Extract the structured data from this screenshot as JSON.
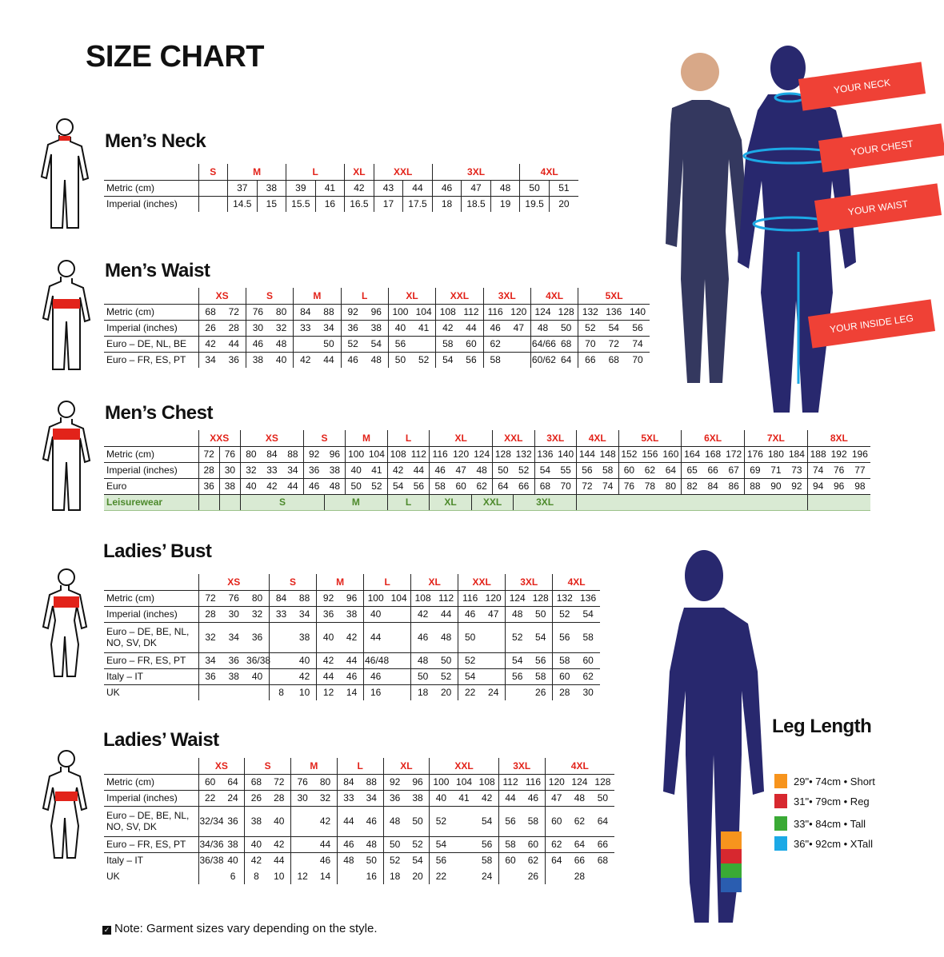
{
  "title": "SIZE CHART",
  "colors": {
    "size_label": "#e2231a",
    "navy": "#28286e",
    "tag": "#ef4136",
    "leisure_bg": "#d9ead3",
    "leisure_text": "#4d8a2c"
  },
  "mens_neck": {
    "heading": "Men’s Neck",
    "sizes": [
      "S",
      "M",
      "L",
      "XL",
      "XXL",
      "3XL",
      "4XL"
    ],
    "rows": [
      {
        "label": "Metric (cm)",
        "groups": [
          [
            ""
          ],
          [
            "37",
            "38"
          ],
          [
            "39",
            "41"
          ],
          [
            "42"
          ],
          [
            "43",
            "44"
          ],
          [
            "46",
            "47",
            "48"
          ],
          [
            "50",
            "51"
          ]
        ]
      },
      {
        "label": "Imperial (inches)",
        "groups": [
          [
            ""
          ],
          [
            "14.5",
            "15"
          ],
          [
            "15.5",
            "16"
          ],
          [
            "16.5"
          ],
          [
            "17",
            "17.5"
          ],
          [
            "18",
            "18.5",
            "19"
          ],
          [
            "19.5",
            "20"
          ]
        ]
      }
    ]
  },
  "mens_waist": {
    "heading": "Men’s Waist",
    "sizes": [
      "XS",
      "S",
      "M",
      "L",
      "XL",
      "XXL",
      "3XL",
      "4XL",
      "5XL"
    ],
    "rows": [
      {
        "label": "Metric (cm)",
        "groups": [
          [
            "68",
            "72"
          ],
          [
            "76",
            "80"
          ],
          [
            "84",
            "88"
          ],
          [
            "92",
            "96"
          ],
          [
            "100",
            "104"
          ],
          [
            "108",
            "112"
          ],
          [
            "116",
            "120"
          ],
          [
            "124",
            "128"
          ],
          [
            "132",
            "136",
            "140"
          ]
        ]
      },
      {
        "label": "Imperial (inches)",
        "groups": [
          [
            "26",
            "28"
          ],
          [
            "30",
            "32"
          ],
          [
            "33",
            "34"
          ],
          [
            "36",
            "38"
          ],
          [
            "40",
            "41"
          ],
          [
            "42",
            "44"
          ],
          [
            "46",
            "47"
          ],
          [
            "48",
            "50"
          ],
          [
            "52",
            "54",
            "56"
          ]
        ]
      },
      {
        "label": "Euro – DE, NL, BE",
        "groups": [
          [
            "42",
            "44"
          ],
          [
            "46",
            "48"
          ],
          [
            "",
            "50"
          ],
          [
            "52",
            "54"
          ],
          [
            "56",
            ""
          ],
          [
            "58",
            "60"
          ],
          [
            "62",
            ""
          ],
          [
            "64/66",
            "68"
          ],
          [
            "70",
            "72",
            "74"
          ]
        ]
      },
      {
        "label": "Euro – FR, ES, PT",
        "groups": [
          [
            "34",
            "36"
          ],
          [
            "38",
            "40"
          ],
          [
            "42",
            "44"
          ],
          [
            "46",
            "48"
          ],
          [
            "50",
            "52"
          ],
          [
            "54",
            "56"
          ],
          [
            "58",
            ""
          ],
          [
            "60/62",
            "64"
          ],
          [
            "66",
            "68",
            "70"
          ]
        ]
      }
    ]
  },
  "mens_chest": {
    "heading": "Men’s Chest",
    "sizes": [
      "XXS",
      "XS",
      "S",
      "M",
      "L",
      "XL",
      "XXL",
      "3XL",
      "4XL",
      "5XL",
      "6XL",
      "7XL",
      "8XL"
    ],
    "rows": [
      {
        "label": "Metric (cm)",
        "groups": [
          [
            "72",
            "76"
          ],
          [
            "80",
            "84",
            "88"
          ],
          [
            "92",
            "96"
          ],
          [
            "100",
            "104"
          ],
          [
            "108",
            "112"
          ],
          [
            "116",
            "120",
            "124"
          ],
          [
            "128",
            "132"
          ],
          [
            "136",
            "140"
          ],
          [
            "144",
            "148"
          ],
          [
            "152",
            "156",
            "160"
          ],
          [
            "164",
            "168",
            "172"
          ],
          [
            "176",
            "180",
            "184"
          ],
          [
            "188",
            "192",
            "196"
          ]
        ]
      },
      {
        "label": "Imperial (inches)",
        "groups": [
          [
            "28",
            "30"
          ],
          [
            "32",
            "33",
            "34"
          ],
          [
            "36",
            "38"
          ],
          [
            "40",
            "41"
          ],
          [
            "42",
            "44"
          ],
          [
            "46",
            "47",
            "48"
          ],
          [
            "50",
            "52"
          ],
          [
            "54",
            "55"
          ],
          [
            "56",
            "58"
          ],
          [
            "60",
            "62",
            "64"
          ],
          [
            "65",
            "66",
            "67"
          ],
          [
            "69",
            "71",
            "73"
          ],
          [
            "74",
            "76",
            "77"
          ]
        ]
      },
      {
        "label": "Euro",
        "groups": [
          [
            "36",
            "38"
          ],
          [
            "40",
            "42",
            "44"
          ],
          [
            "46",
            "48"
          ],
          [
            "50",
            "52"
          ],
          [
            "54",
            "56"
          ],
          [
            "58",
            "60",
            "62"
          ],
          [
            "64",
            "66"
          ],
          [
            "68",
            "70"
          ],
          [
            "72",
            "74"
          ],
          [
            "76",
            "78",
            "80"
          ],
          [
            "82",
            "84",
            "86"
          ],
          [
            "88",
            "90",
            "92"
          ],
          [
            "94",
            "96",
            "98"
          ]
        ]
      }
    ],
    "leisurewear": {
      "label": "Leisurewear",
      "segments": [
        {
          "text": "",
          "cols": 1
        },
        {
          "text": "",
          "cols": 1
        },
        {
          "text": "S",
          "cols": 4
        },
        {
          "text": "M",
          "cols": 3
        },
        {
          "text": "L",
          "cols": 2
        },
        {
          "text": "XL",
          "cols": 2
        },
        {
          "text": "XXL",
          "cols": 2
        },
        {
          "text": "3XL",
          "cols": 3
        },
        {
          "text": "",
          "cols": 11
        },
        {
          "text": "",
          "cols": 3
        }
      ]
    }
  },
  "ladies_bust": {
    "heading": "Ladies’ Bust",
    "sizes": [
      "XS",
      "S",
      "M",
      "L",
      "XL",
      "XXL",
      "3XL",
      "4XL"
    ],
    "rows": [
      {
        "label": "Metric (cm)",
        "groups": [
          [
            "72",
            "76",
            "80"
          ],
          [
            "84",
            "88"
          ],
          [
            "92",
            "96"
          ],
          [
            "100",
            "104"
          ],
          [
            "108",
            "112"
          ],
          [
            "116",
            "120"
          ],
          [
            "124",
            "128"
          ],
          [
            "132",
            "136"
          ]
        ]
      },
      {
        "label": "Imperial (inches)",
        "groups": [
          [
            "28",
            "30",
            "32"
          ],
          [
            "33",
            "34"
          ],
          [
            "36",
            "38"
          ],
          [
            "40",
            ""
          ],
          [
            "42",
            "44"
          ],
          [
            "46",
            "47"
          ],
          [
            "48",
            "50"
          ],
          [
            "52",
            "54"
          ]
        ]
      },
      {
        "label": "Euro –  DE, BE, NL, NO, SV, DK",
        "tall": true,
        "groups": [
          [
            "32",
            "34",
            "36"
          ],
          [
            "",
            "38"
          ],
          [
            "40",
            "42"
          ],
          [
            "44",
            ""
          ],
          [
            "46",
            "48"
          ],
          [
            "50",
            ""
          ],
          [
            "52",
            "54"
          ],
          [
            "56",
            "58"
          ]
        ]
      },
      {
        "label": "Euro – FR, ES, PT",
        "groups": [
          [
            "34",
            "36",
            "36/38"
          ],
          [
            "",
            "40"
          ],
          [
            "42",
            "44"
          ],
          [
            "46/48",
            ""
          ],
          [
            "48",
            "50"
          ],
          [
            "52",
            ""
          ],
          [
            "54",
            "56"
          ],
          [
            "58",
            "60"
          ]
        ]
      },
      {
        "label": "Italy – IT",
        "groups": [
          [
            "36",
            "38",
            "40"
          ],
          [
            "",
            "42"
          ],
          [
            "44",
            "46"
          ],
          [
            "46",
            ""
          ],
          [
            "50",
            "52"
          ],
          [
            "54",
            ""
          ],
          [
            "56",
            "58"
          ],
          [
            "60",
            "62"
          ]
        ]
      },
      {
        "label": "UK",
        "groups": [
          [
            "",
            "",
            ""
          ],
          [
            "8",
            "10"
          ],
          [
            "12",
            "14"
          ],
          [
            "16",
            ""
          ],
          [
            "18",
            "20"
          ],
          [
            "22",
            "24"
          ],
          [
            "",
            "26"
          ],
          [
            "28",
            "30"
          ]
        ]
      }
    ]
  },
  "ladies_waist": {
    "heading": "Ladies’ Waist",
    "sizes": [
      "XS",
      "S",
      "M",
      "L",
      "XL",
      "XXL",
      "3XL",
      "4XL"
    ],
    "rows": [
      {
        "label": "Metric (cm)",
        "groups": [
          [
            "60",
            "64"
          ],
          [
            "68",
            "72"
          ],
          [
            "76",
            "80"
          ],
          [
            "84",
            "88"
          ],
          [
            "92",
            "96"
          ],
          [
            "100",
            "104",
            "108"
          ],
          [
            "112",
            "116"
          ],
          [
            "120",
            "124",
            "128"
          ]
        ]
      },
      {
        "label": "Imperial (inches)",
        "groups": [
          [
            "22",
            "24"
          ],
          [
            "26",
            "28"
          ],
          [
            "30",
            "32"
          ],
          [
            "33",
            "34"
          ],
          [
            "36",
            "38"
          ],
          [
            "40",
            "41",
            "42"
          ],
          [
            "44",
            "46"
          ],
          [
            "47",
            "48",
            "50"
          ]
        ]
      },
      {
        "label": "Euro – DE, BE, NL, NO, SV, DK",
        "tall": true,
        "groups": [
          [
            "32/34",
            "36"
          ],
          [
            "38",
            "40"
          ],
          [
            "",
            "42"
          ],
          [
            "44",
            "46"
          ],
          [
            "48",
            "50"
          ],
          [
            "52",
            "",
            "54"
          ],
          [
            "56",
            "58"
          ],
          [
            "60",
            "62",
            "64"
          ]
        ]
      },
      {
        "label": "Euro – FR, ES, PT",
        "groups": [
          [
            "34/36",
            "38"
          ],
          [
            "40",
            "42"
          ],
          [
            "",
            "44"
          ],
          [
            "46",
            "48"
          ],
          [
            "50",
            "52"
          ],
          [
            "54",
            "",
            "56"
          ],
          [
            "58",
            "60"
          ],
          [
            "62",
            "64",
            "66"
          ]
        ]
      },
      {
        "label": "Italy – IT",
        "nobottom": true,
        "groups": [
          [
            "36/38",
            "40"
          ],
          [
            "42",
            "44"
          ],
          [
            "",
            "46"
          ],
          [
            "48",
            "50"
          ],
          [
            "52",
            "54"
          ],
          [
            "56",
            "",
            "58"
          ],
          [
            "60",
            "62"
          ],
          [
            "64",
            "66",
            "68"
          ]
        ]
      },
      {
        "label": "UK",
        "groups": [
          [
            "",
            "6"
          ],
          [
            "8",
            "10"
          ],
          [
            "12",
            "14"
          ],
          [
            "",
            "16"
          ],
          [
            "18",
            "20"
          ],
          [
            "22",
            "",
            "24"
          ],
          [
            "",
            "26"
          ],
          [
            "",
            "28",
            ""
          ]
        ]
      }
    ]
  },
  "measure_tags": [
    "YOUR NECK",
    "YOUR CHEST",
    "YOUR WAIST",
    "YOUR INSIDE LEG"
  ],
  "leg_length": {
    "heading": "Leg Length",
    "items": [
      {
        "text": "29\"• 74cm • Short",
        "color": "#f7941d"
      },
      {
        "text": "31\"• 79cm • Reg",
        "color": "#d7282f"
      },
      {
        "text": "33\"• 84cm • Tall",
        "color": "#3aaa35"
      },
      {
        "text": "36\"• 92cm • XTall",
        "color": "#1ca9e6"
      }
    ]
  },
  "note": "Note: Garment sizes vary depending on the style."
}
